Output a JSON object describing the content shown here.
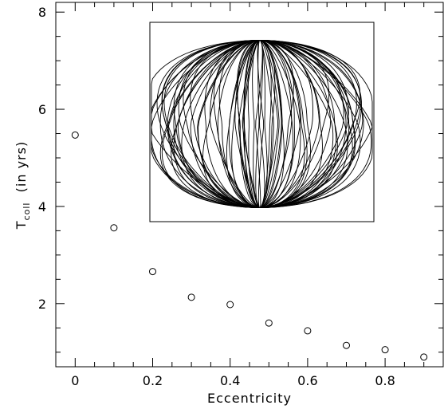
{
  "chart_data": {
    "type": "scatter",
    "xlabel": "Eccentricity",
    "ylabel_main": "T",
    "ylabel_sub": "coll",
    "ylabel_rest": "  (in yrs)",
    "xlim": [
      -0.05,
      0.95
    ],
    "ylim": [
      0.7,
      8.2
    ],
    "x_ticks": [
      0,
      0.2,
      0.4,
      0.6,
      0.8
    ],
    "x_tick_labels": [
      "0",
      "0.2",
      "0.4",
      "0.6",
      "0.8"
    ],
    "y_ticks": [
      2,
      4,
      6,
      8
    ],
    "y_tick_labels": [
      "2",
      "4",
      "6",
      "8"
    ],
    "marker": "open-circle",
    "grid": false,
    "series": [
      {
        "x": [
          0,
          0.1,
          0.2,
          0.3,
          0.4,
          0.5,
          0.6,
          0.7,
          0.8,
          0.9
        ],
        "y": [
          5.47,
          3.56,
          2.66,
          2.13,
          1.98,
          1.6,
          1.44,
          1.14,
          1.05,
          0.9
        ]
      }
    ],
    "inset": {
      "description_type": "orbit-trace",
      "border": true
    }
  }
}
